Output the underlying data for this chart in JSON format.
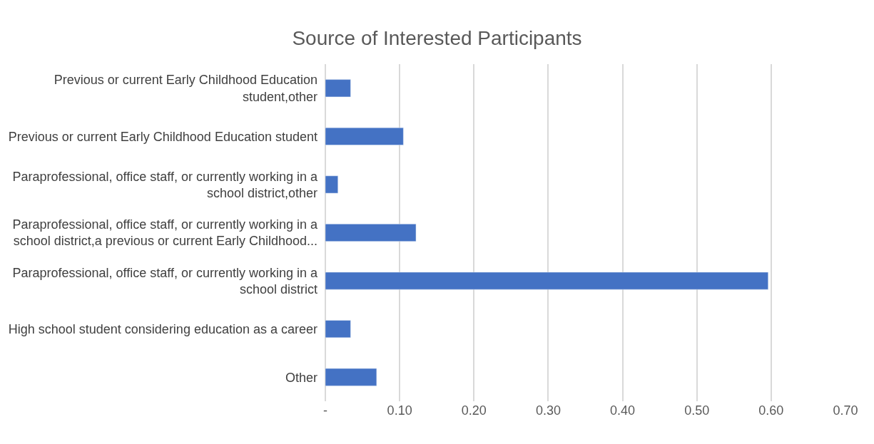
{
  "chart_data": {
    "type": "bar",
    "orientation": "horizontal",
    "title": "Source of Interested Participants",
    "categories": [
      "Previous or current Early Childhood Education\nstudent,other",
      "Previous or current Early Childhood Education student",
      "Paraprofessional, office staff, or currently working in a\nschool district,other",
      "Paraprofessional, office staff, or currently working in a\nschool district,a previous or current Early Childhood...",
      "Paraprofessional, office staff, or currently working in a\nschool district",
      "High school student considering education as a career",
      "Other"
    ],
    "values": [
      0.034,
      0.105,
      0.017,
      0.122,
      0.596,
      0.034,
      0.069
    ],
    "color": "#4472c4",
    "xlim": [
      0,
      0.7
    ],
    "xticks": [
      {
        "value": 0,
        "label": "-"
      },
      {
        "value": 0.1,
        "label": "0.10"
      },
      {
        "value": 0.2,
        "label": "0.20"
      },
      {
        "value": 0.3,
        "label": "0.30"
      },
      {
        "value": 0.4,
        "label": "0.40"
      },
      {
        "value": 0.5,
        "label": "0.50"
      },
      {
        "value": 0.6,
        "label": "0.60"
      },
      {
        "value": 0.7,
        "label": "0.70"
      }
    ],
    "grid": "x"
  }
}
